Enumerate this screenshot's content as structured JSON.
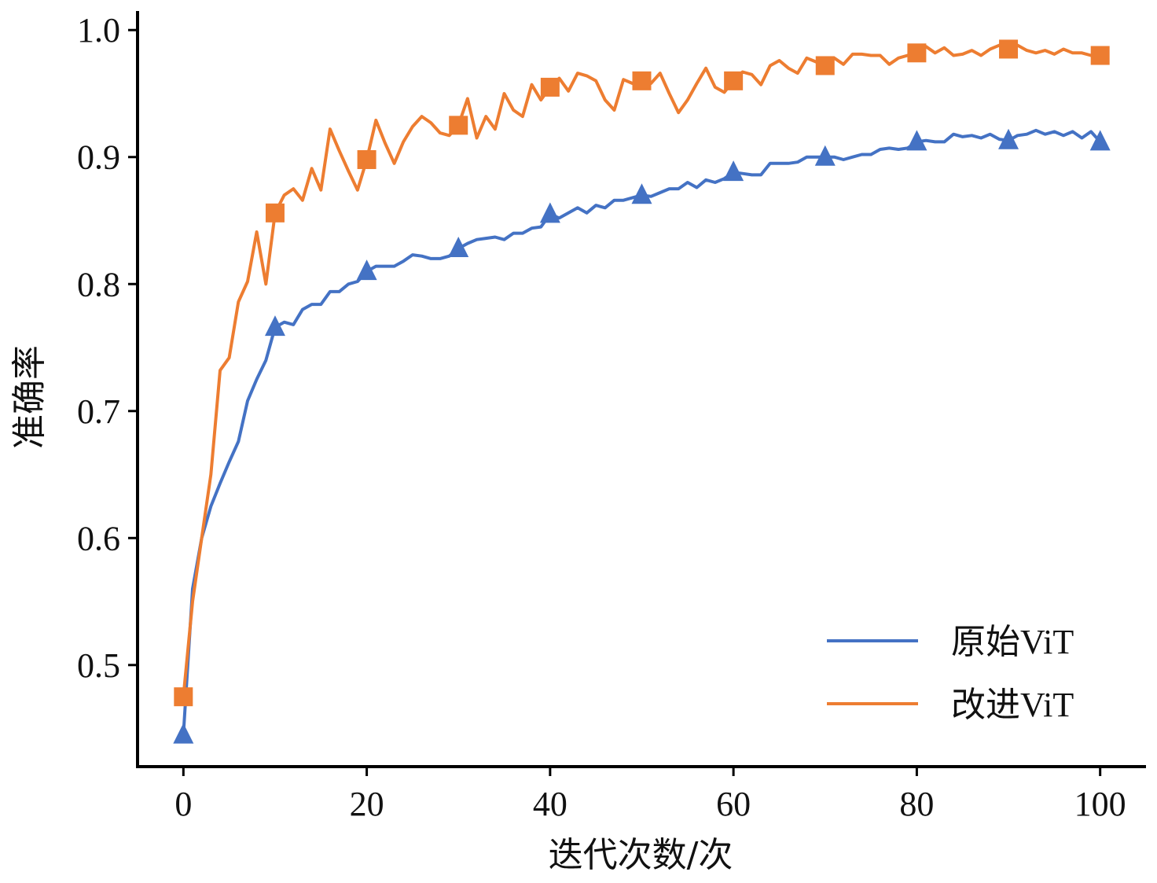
{
  "chart_data": {
    "type": "line",
    "title": "",
    "xlabel": "迭代次数/次",
    "ylabel": "准确率",
    "xlim": [
      -5,
      105
    ],
    "ylim": [
      0.42,
      1.015
    ],
    "xticks": [
      0,
      20,
      40,
      60,
      80,
      100
    ],
    "xtick_labels": [
      "0",
      "20",
      "40",
      "60",
      "80",
      "100"
    ],
    "yticks": [
      0.5,
      0.6,
      0.7,
      0.8,
      0.9,
      1.0
    ],
    "ytick_labels": [
      "0.5",
      "0.6",
      "0.7",
      "0.8",
      "0.9",
      "1.0"
    ],
    "grid": false,
    "legend_position": "bottom-right",
    "series": [
      {
        "name": "原始ViT",
        "color": "#4472C4",
        "marker": "triangle",
        "marker_every": 10,
        "x": [
          0,
          1,
          2,
          3,
          4,
          5,
          6,
          7,
          8,
          9,
          10,
          11,
          12,
          13,
          14,
          15,
          16,
          17,
          18,
          19,
          20,
          21,
          22,
          23,
          24,
          25,
          26,
          27,
          28,
          29,
          30,
          31,
          32,
          33,
          34,
          35,
          36,
          37,
          38,
          39,
          40,
          41,
          42,
          43,
          44,
          45,
          46,
          47,
          48,
          49,
          50,
          51,
          52,
          53,
          54,
          55,
          56,
          57,
          58,
          59,
          60,
          61,
          62,
          63,
          64,
          65,
          66,
          67,
          68,
          69,
          70,
          71,
          72,
          73,
          74,
          75,
          76,
          77,
          78,
          79,
          80,
          81,
          82,
          83,
          84,
          85,
          86,
          87,
          88,
          89,
          90,
          91,
          92,
          93,
          94,
          95,
          96,
          97,
          98,
          99,
          100
        ],
        "values": [
          0.445,
          0.56,
          0.6,
          0.625,
          0.643,
          0.66,
          0.676,
          0.708,
          0.725,
          0.74,
          0.766,
          0.77,
          0.768,
          0.78,
          0.784,
          0.784,
          0.794,
          0.794,
          0.8,
          0.802,
          0.81,
          0.814,
          0.814,
          0.814,
          0.818,
          0.823,
          0.822,
          0.82,
          0.82,
          0.822,
          0.828,
          0.832,
          0.835,
          0.836,
          0.837,
          0.835,
          0.84,
          0.84,
          0.844,
          0.845,
          0.855,
          0.852,
          0.856,
          0.86,
          0.856,
          0.862,
          0.86,
          0.866,
          0.866,
          0.868,
          0.87,
          0.869,
          0.872,
          0.875,
          0.875,
          0.88,
          0.876,
          0.882,
          0.88,
          0.883,
          0.888,
          0.887,
          0.886,
          0.886,
          0.895,
          0.895,
          0.895,
          0.896,
          0.9,
          0.9,
          0.9,
          0.9,
          0.898,
          0.9,
          0.902,
          0.902,
          0.906,
          0.907,
          0.906,
          0.907,
          0.912,
          0.913,
          0.912,
          0.912,
          0.918,
          0.916,
          0.917,
          0.915,
          0.918,
          0.914,
          0.913,
          0.917,
          0.918,
          0.921,
          0.918,
          0.92,
          0.917,
          0.92,
          0.915,
          0.92,
          0.912
        ]
      },
      {
        "name": "改进ViT",
        "color": "#ED7D31",
        "marker": "square",
        "marker_every": 10,
        "x": [
          0,
          1,
          2,
          3,
          4,
          5,
          6,
          7,
          8,
          9,
          10,
          11,
          12,
          13,
          14,
          15,
          16,
          17,
          18,
          19,
          20,
          21,
          22,
          23,
          24,
          25,
          26,
          27,
          28,
          29,
          30,
          31,
          32,
          33,
          34,
          35,
          36,
          37,
          38,
          39,
          40,
          41,
          42,
          43,
          44,
          45,
          46,
          47,
          48,
          49,
          50,
          51,
          52,
          53,
          54,
          55,
          56,
          57,
          58,
          59,
          60,
          61,
          62,
          63,
          64,
          65,
          66,
          67,
          68,
          69,
          70,
          71,
          72,
          73,
          74,
          75,
          76,
          77,
          78,
          79,
          80,
          81,
          82,
          83,
          84,
          85,
          86,
          87,
          88,
          89,
          90,
          91,
          92,
          93,
          94,
          95,
          96,
          97,
          98,
          99,
          100
        ],
        "values": [
          0.475,
          0.55,
          0.6,
          0.65,
          0.732,
          0.742,
          0.786,
          0.802,
          0.841,
          0.8,
          0.856,
          0.87,
          0.875,
          0.866,
          0.891,
          0.874,
          0.922,
          0.905,
          0.889,
          0.874,
          0.898,
          0.929,
          0.911,
          0.895,
          0.912,
          0.924,
          0.932,
          0.927,
          0.919,
          0.917,
          0.925,
          0.946,
          0.915,
          0.932,
          0.922,
          0.95,
          0.937,
          0.932,
          0.957,
          0.945,
          0.955,
          0.962,
          0.952,
          0.966,
          0.964,
          0.96,
          0.945,
          0.937,
          0.961,
          0.958,
          0.96,
          0.958,
          0.966,
          0.95,
          0.935,
          0.945,
          0.958,
          0.97,
          0.955,
          0.951,
          0.96,
          0.967,
          0.965,
          0.957,
          0.972,
          0.976,
          0.97,
          0.966,
          0.978,
          0.975,
          0.972,
          0.978,
          0.973,
          0.981,
          0.981,
          0.98,
          0.98,
          0.973,
          0.978,
          0.98,
          0.982,
          0.987,
          0.982,
          0.986,
          0.98,
          0.981,
          0.984,
          0.98,
          0.985,
          0.988,
          0.985,
          0.988,
          0.984,
          0.982,
          0.984,
          0.981,
          0.985,
          0.982,
          0.982,
          0.98,
          0.98
        ]
      }
    ]
  }
}
